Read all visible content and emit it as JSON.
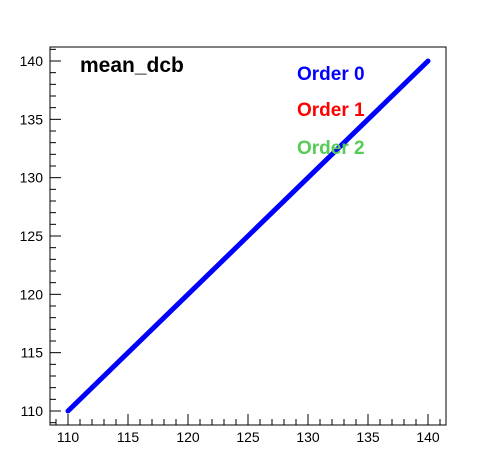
{
  "chart_data": {
    "type": "line",
    "title": "mean_dcb",
    "xlabel": "",
    "ylabel": "",
    "xlim": [
      108.5,
      141.5
    ],
    "ylim": [
      108.8,
      141.2
    ],
    "x_ticks": [
      110,
      115,
      120,
      125,
      130,
      135,
      140
    ],
    "y_ticks": [
      110,
      115,
      120,
      125,
      130,
      135,
      140
    ],
    "grid": false,
    "legend_position": "top-right",
    "series": [
      {
        "name": "Order 0",
        "color": "#0000ff",
        "x": [
          110,
          140
        ],
        "y": [
          110,
          140
        ]
      },
      {
        "name": "Order 1",
        "color": "#ff0000",
        "x": [],
        "y": []
      },
      {
        "name": "Order 2",
        "color": "#55cc55",
        "x": [],
        "y": []
      }
    ]
  }
}
